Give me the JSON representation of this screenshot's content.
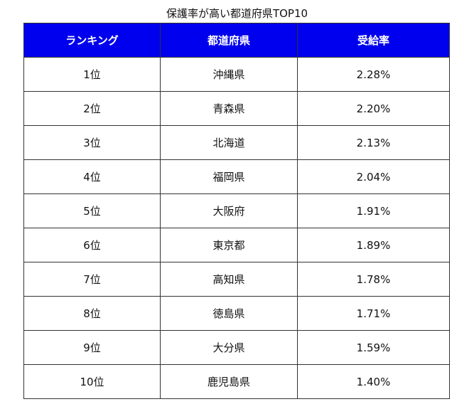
{
  "table": {
    "title": "保護率が高い都道府県TOP10",
    "header": [
      "ランキング",
      "都道府県",
      "受給率"
    ],
    "rows": [
      [
        "1位",
        "沖縄県",
        "2.28%"
      ],
      [
        "2位",
        "青森県",
        "2.20%"
      ],
      [
        "3位",
        "北海道",
        "2.13%"
      ],
      [
        "4位",
        "福岡県",
        "2.04%"
      ],
      [
        "5位",
        "大阪府",
        "1.91%"
      ],
      [
        "6位",
        "東京都",
        "1.89%"
      ],
      [
        "7位",
        "高知県",
        "1.78%"
      ],
      [
        "8位",
        "徳島県",
        "1.71%"
      ],
      [
        "9位",
        "大分県",
        "1.59%"
      ],
      [
        "10位",
        "鹿児島県",
        "1.40%"
      ]
    ]
  }
}
